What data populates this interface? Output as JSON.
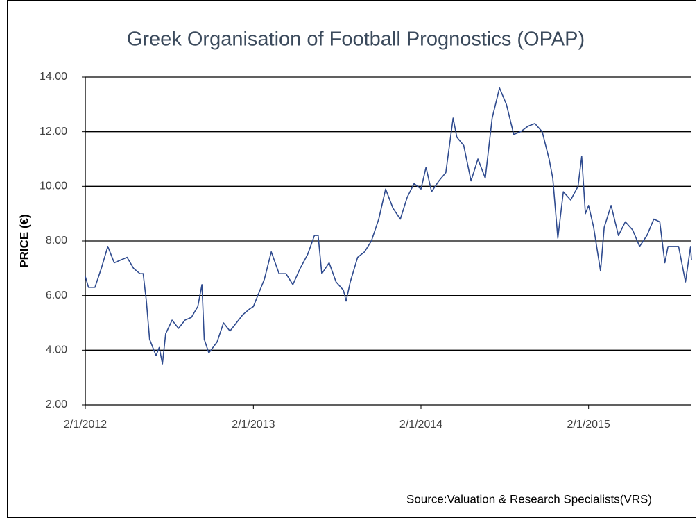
{
  "chart_data": {
    "type": "line",
    "title": "Greek Organisation of Football Prognostics (OPAP)",
    "y_label": "PRICE (€)",
    "source": "Source:Valuation & Research Specialists(VRS)",
    "color": "#2f4b8f",
    "grid": true,
    "xlim": [
      "2012-01-02",
      "2015-08-14"
    ],
    "xticks": [
      {
        "value": "2012-01-02",
        "label": "2/1/2012"
      },
      {
        "value": "2013-01-02",
        "label": "2/1/2013"
      },
      {
        "value": "2014-01-02",
        "label": "2/1/2014"
      },
      {
        "value": "2015-01-02",
        "label": "2/1/2015"
      }
    ],
    "ylim": [
      2,
      14
    ],
    "yticks": [
      {
        "value": 2,
        "label": "2.00"
      },
      {
        "value": 4,
        "label": "4.00"
      },
      {
        "value": 6,
        "label": "6.00"
      },
      {
        "value": 8,
        "label": "8.00"
      },
      {
        "value": 10,
        "label": "10.00"
      },
      {
        "value": 12,
        "label": "12.00"
      },
      {
        "value": 14,
        "label": "14.00"
      }
    ],
    "x": [
      "2012-01-02",
      "2012-01-09",
      "2012-01-23",
      "2012-02-06",
      "2012-02-20",
      "2012-03-05",
      "2012-03-19",
      "2012-04-02",
      "2012-04-16",
      "2012-04-30",
      "2012-05-07",
      "2012-05-14",
      "2012-05-21",
      "2012-05-28",
      "2012-06-04",
      "2012-06-11",
      "2012-06-18",
      "2012-06-25",
      "2012-07-09",
      "2012-07-23",
      "2012-08-06",
      "2012-08-20",
      "2012-09-03",
      "2012-09-12",
      "2012-09-17",
      "2012-09-27",
      "2012-10-15",
      "2012-10-29",
      "2012-11-12",
      "2012-11-26",
      "2012-12-10",
      "2012-12-24",
      "2013-01-02",
      "2013-01-26",
      "2013-02-10",
      "2013-02-27",
      "2013-03-14",
      "2013-03-29",
      "2013-04-14",
      "2013-04-30",
      "2013-05-15",
      "2013-05-23",
      "2013-05-31",
      "2013-06-16",
      "2013-07-01",
      "2013-07-17",
      "2013-07-23",
      "2013-08-01",
      "2013-08-17",
      "2013-09-01",
      "2013-09-16",
      "2013-10-02",
      "2013-10-17",
      "2013-11-02",
      "2013-11-18",
      "2013-12-03",
      "2013-12-18",
      "2014-01-02",
      "2014-01-13",
      "2014-01-25",
      "2014-02-10",
      "2014-02-25",
      "2014-03-13",
      "2014-03-21",
      "2014-04-05",
      "2014-04-21",
      "2014-05-06",
      "2014-05-22",
      "2014-06-06",
      "2014-06-22",
      "2014-07-07",
      "2014-07-23",
      "2014-08-07",
      "2014-08-23",
      "2014-09-07",
      "2014-09-23",
      "2014-10-08",
      "2014-10-16",
      "2014-10-27",
      "2014-11-08",
      "2014-11-24",
      "2014-12-10",
      "2014-12-18",
      "2014-12-26",
      "2015-01-02",
      "2015-01-13",
      "2015-01-28",
      "2015-02-05",
      "2015-02-20",
      "2015-03-08",
      "2015-03-23",
      "2015-04-08",
      "2015-04-23",
      "2015-05-09",
      "2015-05-24",
      "2015-06-06",
      "2015-06-17",
      "2015-06-24",
      "2015-07-17",
      "2015-08-01",
      "2015-08-12",
      "2015-08-14"
    ],
    "values": [
      6.7,
      6.3,
      6.3,
      7.0,
      7.8,
      7.2,
      7.3,
      7.4,
      7.0,
      6.8,
      6.8,
      5.8,
      4.4,
      4.1,
      3.8,
      4.1,
      3.5,
      4.6,
      5.1,
      4.8,
      5.1,
      5.2,
      5.6,
      6.4,
      4.4,
      3.9,
      4.3,
      5.0,
      4.7,
      5.0,
      5.3,
      5.5,
      5.6,
      6.6,
      7.6,
      6.8,
      6.8,
      6.4,
      7.0,
      7.5,
      8.2,
      8.2,
      6.8,
      7.2,
      6.5,
      6.2,
      5.8,
      6.5,
      7.4,
      7.6,
      8.0,
      8.8,
      9.9,
      9.2,
      8.8,
      9.6,
      10.1,
      9.9,
      10.7,
      9.8,
      10.2,
      10.5,
      12.5,
      11.8,
      11.5,
      10.2,
      11.0,
      10.3,
      12.5,
      13.6,
      13.0,
      11.9,
      12.0,
      12.2,
      12.3,
      12.0,
      11.0,
      10.3,
      8.1,
      9.8,
      9.5,
      10.0,
      11.1,
      9.0,
      9.3,
      8.5,
      6.9,
      8.5,
      9.3,
      8.2,
      8.7,
      8.4,
      7.8,
      8.2,
      8.8,
      8.7,
      7.2,
      7.8,
      7.8,
      6.5,
      7.8,
      7.3
    ]
  }
}
